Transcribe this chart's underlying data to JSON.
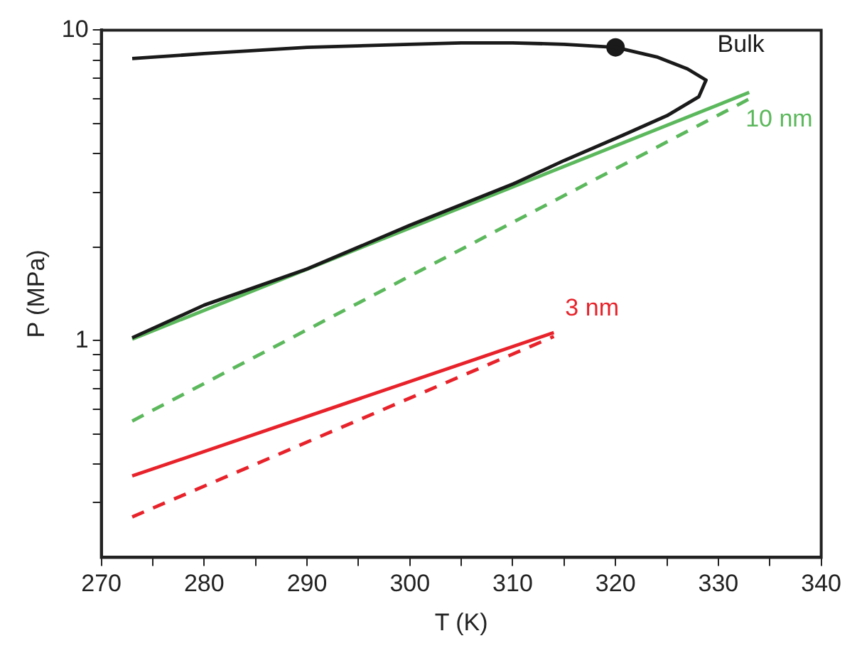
{
  "chart_data": {
    "type": "line",
    "xlabel": "T (K)",
    "ylabel": "P (MPa)",
    "log": "y",
    "grid": false,
    "legend": false,
    "marker": "none",
    "xlim": [
      270,
      340
    ],
    "xticks": [
      270,
      {
        "value": 275,
        "label": null
      },
      280,
      {
        "value": 285,
        "label": null
      },
      290,
      {
        "value": 295,
        "label": null
      },
      300,
      {
        "value": 305,
        "label": null
      },
      310,
      {
        "value": 315,
        "label": null
      },
      320,
      {
        "value": 325,
        "label": null
      },
      330,
      {
        "value": 335,
        "label": null
      },
      340
    ],
    "ylim": [
      0.2,
      10
    ],
    "yticks": [
      {
        "value": 0.3,
        "label": null
      },
      {
        "value": 0.4,
        "label": null
      },
      {
        "value": 0.5,
        "label": null
      },
      {
        "value": 0.6,
        "label": null
      },
      {
        "value": 0.7,
        "label": null
      },
      {
        "value": 0.8,
        "label": null
      },
      {
        "value": 0.9,
        "label": null
      },
      1,
      {
        "value": 2,
        "label": null
      },
      {
        "value": 3,
        "label": null
      },
      {
        "value": 4,
        "label": null
      },
      {
        "value": 5,
        "label": null
      },
      {
        "value": 6,
        "label": null
      },
      {
        "value": 7,
        "label": null
      },
      {
        "value": 8,
        "label": null
      },
      {
        "value": 9,
        "label": null
      },
      10
    ],
    "series": [
      {
        "name": "Bulk",
        "color": "#1a1a1a",
        "line_style": "solid",
        "x": [
          273,
          280,
          290,
          300,
          305,
          310,
          315,
          320,
          324,
          327,
          328.8,
          328.1,
          325,
          320.8,
          315,
          310.1,
          300,
          290,
          280,
          273
        ],
        "values": [
          8.1,
          8.4,
          8.8,
          9.0,
          9.1,
          9.1,
          9.0,
          8.8,
          8.2,
          7.5,
          6.9,
          6.1,
          5.3,
          4.6,
          3.8,
          3.2,
          2.35,
          1.7,
          1.3,
          1.02
        ]
      },
      {
        "type": "scatter",
        "marker": "circle",
        "color": "#1a1a1a",
        "x": [
          320
        ],
        "values": [
          8.8
        ]
      },
      {
        "name": "10 nm",
        "color": "#5cb85c",
        "line_style": "solid",
        "x": [
          273,
          333
        ],
        "values": [
          1.01,
          6.3
        ]
      },
      {
        "color": "#5cb85c",
        "line_style": "dashed",
        "x": [
          273,
          333
        ],
        "values": [
          0.55,
          6.0
        ]
      },
      {
        "name": "3 nm",
        "color": "#e8222a",
        "line_style": "solid",
        "x": [
          273,
          314
        ],
        "values": [
          0.366,
          1.06
        ]
      },
      {
        "color": "#e8222a",
        "line_style": "dashed",
        "x": [
          273,
          314
        ],
        "values": [
          0.27,
          1.03
        ]
      }
    ]
  }
}
